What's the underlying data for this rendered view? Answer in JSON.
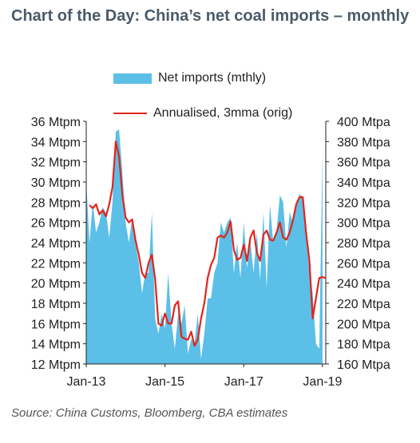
{
  "title": "Chart of the Day: China’s net coal imports – monthly",
  "source": "Source: China Customs, Bloomberg, CBA estimates",
  "colors": {
    "area": "#5bbfe8",
    "line": "#e1251b",
    "axis": "#222222",
    "title": "#4a5a6a"
  },
  "chart_data": {
    "type": "area",
    "legend": {
      "placement": "top",
      "entries": [
        "Net imports (mthly)",
        "Annualised, 3mma (orig)"
      ]
    },
    "grid": false,
    "y_left": {
      "ticks": [
        "12 Mtpm",
        "14 Mtpm",
        "16 Mtpm",
        "18 Mtpm",
        "20 Mtpm",
        "22 Mtpm",
        "24 Mtpm",
        "26 Mtpm",
        "28 Mtpm",
        "30 Mtpm",
        "32 Mtpm",
        "34 Mtpm",
        "36 Mtpm"
      ],
      "range": [
        12,
        36
      ],
      "unit": "Mtpm"
    },
    "y_right": {
      "ticks": [
        "160 Mtpa",
        "180 Mtpa",
        "200 Mtpa",
        "220 Mtpa",
        "240 Mtpa",
        "260 Mtpa",
        "280 Mtpa",
        "300 Mtpa",
        "320 Mtpa",
        "340 Mtpa",
        "360 Mtpa",
        "380 Mtpa",
        "400 Mtpa"
      ],
      "range": [
        160,
        400
      ],
      "unit": "Mtpa"
    },
    "x_ticks": [
      {
        "label": "Jan-13",
        "date": "2013-01"
      },
      {
        "label": "Jan-15",
        "date": "2015-01"
      },
      {
        "label": "Jan-17",
        "date": "2017-01"
      },
      {
        "label": "Jan-19",
        "date": "2019-01"
      }
    ],
    "x_range": [
      "2013-01",
      "2019-02"
    ],
    "series": [
      {
        "name": "Net imports (mthly)",
        "type": "area",
        "axis": "left",
        "x": [
          "2013-01",
          "2013-02",
          "2013-03",
          "2013-04",
          "2013-05",
          "2013-06",
          "2013-07",
          "2013-08",
          "2013-09",
          "2013-10",
          "2013-11",
          "2013-12",
          "2014-01",
          "2014-02",
          "2014-03",
          "2014-04",
          "2014-05",
          "2014-06",
          "2014-07",
          "2014-08",
          "2014-09",
          "2014-10",
          "2014-11",
          "2014-12",
          "2015-01",
          "2015-02",
          "2015-03",
          "2015-04",
          "2015-05",
          "2015-06",
          "2015-07",
          "2015-08",
          "2015-09",
          "2015-10",
          "2015-11",
          "2015-12",
          "2016-01",
          "2016-02",
          "2016-03",
          "2016-04",
          "2016-05",
          "2016-06",
          "2016-07",
          "2016-08",
          "2016-09",
          "2016-10",
          "2016-11",
          "2016-12",
          "2017-01",
          "2017-02",
          "2017-03",
          "2017-04",
          "2017-05",
          "2017-06",
          "2017-07",
          "2017-08",
          "2017-09",
          "2017-10",
          "2017-11",
          "2017-12",
          "2018-01",
          "2018-02",
          "2018-03",
          "2018-04",
          "2018-05",
          "2018-06",
          "2018-07",
          "2018-08",
          "2018-09",
          "2018-10",
          "2018-11",
          "2018-12",
          "2019-01"
        ],
        "values": [
          30,
          24,
          28,
          25,
          26,
          27.5,
          27,
          24.5,
          28,
          35,
          35.2,
          31,
          26,
          24,
          26.5,
          24,
          22,
          19,
          21,
          21,
          27,
          16.5,
          15,
          17,
          15.5,
          21,
          16,
          13.5,
          17,
          16,
          17.8,
          13,
          14.5,
          14,
          17,
          12.5,
          15,
          18.5,
          18.5,
          21,
          22,
          26,
          25,
          26,
          26.5,
          21,
          24,
          20.5,
          26,
          21.5,
          24.2,
          21,
          25,
          20.3,
          27,
          19.5,
          27.8,
          24,
          25.2,
          28.7,
          28,
          23.5,
          27,
          26,
          27.5,
          28.8,
          28.5,
          25,
          21,
          19,
          14,
          13.5,
          33
        ]
      },
      {
        "name": "Annualised, 3mma (orig)",
        "type": "line",
        "axis": "right",
        "x": [
          "2013-02",
          "2013-03",
          "2013-04",
          "2013-05",
          "2013-06",
          "2013-07",
          "2013-08",
          "2013-09",
          "2013-10",
          "2013-11",
          "2013-12",
          "2014-01",
          "2014-02",
          "2014-03",
          "2014-04",
          "2014-05",
          "2014-06",
          "2014-07",
          "2014-08",
          "2014-09",
          "2014-10",
          "2014-11",
          "2014-12",
          "2015-01",
          "2015-02",
          "2015-03",
          "2015-04",
          "2015-05",
          "2015-06",
          "2015-07",
          "2015-08",
          "2015-09",
          "2015-10",
          "2015-11",
          "2015-12",
          "2016-01",
          "2016-02",
          "2016-03",
          "2016-04",
          "2016-05",
          "2016-06",
          "2016-07",
          "2016-08",
          "2016-09",
          "2016-10",
          "2016-11",
          "2016-12",
          "2017-01",
          "2017-02",
          "2017-03",
          "2017-04",
          "2017-05",
          "2017-06",
          "2017-07",
          "2017-08",
          "2017-09",
          "2017-10",
          "2017-11",
          "2017-12",
          "2018-01",
          "2018-02",
          "2018-03",
          "2018-04",
          "2018-05",
          "2018-06",
          "2018-07",
          "2018-08",
          "2018-09",
          "2018-10",
          "2018-11",
          "2018-12",
          "2019-01",
          "2019-02"
        ],
        "values": [
          317,
          314,
          318,
          308,
          312,
          306,
          318,
          335,
          380,
          365,
          328,
          305,
          300,
          303,
          283,
          268,
          250,
          245,
          260,
          268,
          244,
          200,
          198,
          210,
          200,
          200,
          218,
          222,
          187,
          185,
          184,
          192,
          178,
          184,
          205,
          220,
          245,
          258,
          265,
          285,
          287,
          285,
          290,
          301,
          273,
          263,
          265,
          278,
          262,
          285,
          292,
          270,
          262,
          288,
          292,
          283,
          282,
          290,
          300,
          285,
          283,
          290,
          302,
          318,
          325,
          325,
          290,
          262,
          205,
          225,
          245,
          246,
          245
        ]
      }
    ]
  }
}
